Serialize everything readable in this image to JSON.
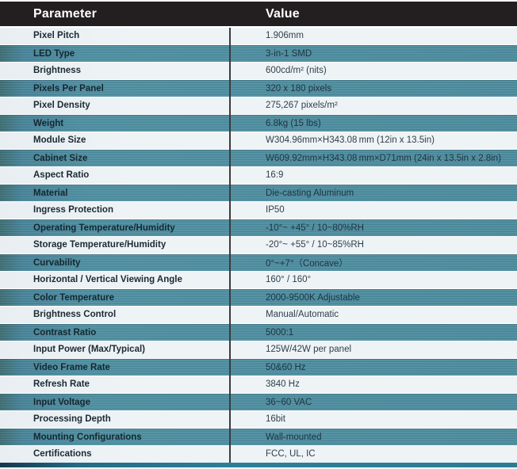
{
  "table": {
    "headers": [
      "Parameter",
      "Value"
    ],
    "rows": [
      {
        "parameter": "Pixel Pitch",
        "value": "1.906mm"
      },
      {
        "parameter": "LED Type",
        "value": "3-in-1 SMD"
      },
      {
        "parameter": "Brightness",
        "value": "600cd/m² (nits)"
      },
      {
        "parameter": "Pixels Per Panel",
        "value": "320 x 180 pixels"
      },
      {
        "parameter": "Pixel Density",
        "value": "275,267 pixels/m²"
      },
      {
        "parameter": "Weight",
        "value": "6.8kg (15 lbs)"
      },
      {
        "parameter": "Module Size",
        "value": "W304.96mm×H343.08 mm (12in x 13.5in)"
      },
      {
        "parameter": "Cabinet Size",
        "value": "W609.92mm×H343.08 mm×D71mm (24in x 13.5in x 2.8in)"
      },
      {
        "parameter": "Aspect Ratio",
        "value": "16:9"
      },
      {
        "parameter": "Material",
        "value": "Die-casting Aluminum"
      },
      {
        "parameter": "Ingress Protection",
        "value": "IP50"
      },
      {
        "parameter": "Operating Temperature/Humidity",
        "value": "-10°~ +45° / 10~80%RH"
      },
      {
        "parameter": "Storage Temperature/Humidity",
        "value": "-20°~ +55° / 10~85%RH"
      },
      {
        "parameter": "Curvability",
        "value": "0°~+7°（Concave）"
      },
      {
        "parameter": "Horizontal / Vertical Viewing Angle",
        "value": "160° / 160°"
      },
      {
        "parameter": "Color Temperature",
        "value": "2000-9500K Adjustable"
      },
      {
        "parameter": "Brightness Control",
        "value": "Manual/Automatic"
      },
      {
        "parameter": "Contrast Ratio",
        "value": "5000:1"
      },
      {
        "parameter": "Input Power (Max/Typical)",
        "value": "125W/42W per panel"
      },
      {
        "parameter": "Video Frame Rate",
        "value": "50&60 Hz"
      },
      {
        "parameter": "Refresh Rate",
        "value": "3840 Hz"
      },
      {
        "parameter": "Input Voltage",
        "value": "36~60 VAC"
      },
      {
        "parameter": "Processing Depth",
        "value": "16bit"
      },
      {
        "parameter": "Mounting Configurations",
        "value": "Wall-mounted"
      },
      {
        "parameter": "Certifications",
        "value": "FCC, UL, IC"
      }
    ]
  },
  "colors": {
    "header_background": "#231f20",
    "header_text": "#ffffff",
    "row_light": "#eef3f6",
    "row_teal": "#4e90a2",
    "row_teal_edge": "#3d6e73",
    "divider": "#3b3b3d",
    "bottom_bar_left": "#14384e",
    "bottom_bar_right": "#2d7f98",
    "parameter_text": "#1b2a33",
    "value_text": "#2e3f4a"
  }
}
